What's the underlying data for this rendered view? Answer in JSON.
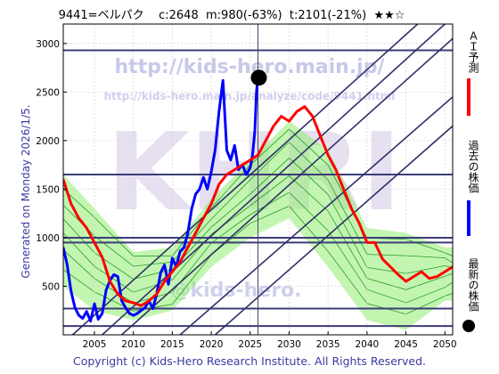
{
  "header": {
    "ticker": "9441=ベルパク",
    "current": "c:2648",
    "min": "m:980(-63%)",
    "target": "t:2101(-21%)",
    "stars": "★★☆"
  },
  "side_label": "Generated on Monday 2026/1/5.",
  "copyright": "Copyright (c) Kids-Hero Research Institute. All Rights Reserved.",
  "watermark": {
    "url1": "http://kids-hero.main.jp/",
    "url2": "http://kids-hero.main.jp/analyze/code/9441.html",
    "big": "KHRI",
    "email": "@kids-hero."
  },
  "legend": {
    "ai_label": "ＡＩ予測",
    "past_label": "過去の株価",
    "latest_label": "最新の株価"
  },
  "colors": {
    "ai": "#ff0000",
    "past": "#0000ff",
    "latest": "#000000",
    "band_fill": "#90ee70",
    "band_line": "#2a9a2a",
    "hline": "#3c3c78",
    "diag": "#30306a"
  },
  "chart_data": {
    "type": "line",
    "xlim": [
      2001,
      2051
    ],
    "ylim": [
      0,
      3200
    ],
    "x_ticks": [
      2005,
      2010,
      2015,
      2020,
      2025,
      2030,
      2035,
      2040,
      2045,
      2050
    ],
    "y_ticks": [
      500,
      1000,
      1500,
      2000,
      2500,
      3000
    ],
    "horizontal_levels": [
      2930,
      1650,
      1000,
      950,
      270,
      90
    ],
    "vertical_marker_x": 2026,
    "latest_point": {
      "x": 2026.0,
      "y": 2648
    },
    "series": [
      {
        "key": "past",
        "x": [
          2001.0,
          2001.5,
          2002.0,
          2002.5,
          2003.0,
          2003.5,
          2004.0,
          2004.5,
          2005.0,
          2005.5,
          2006.0,
          2006.5,
          2007.0,
          2007.5,
          2008.0,
          2008.5,
          2009.0,
          2009.5,
          2010.0,
          2010.5,
          2011.0,
          2011.5,
          2012.0,
          2012.5,
          2013.0,
          2013.5,
          2014.0,
          2014.5,
          2015.0,
          2015.5,
          2016.0,
          2016.5,
          2017.0,
          2017.5,
          2018.0,
          2018.5,
          2019.0,
          2019.5,
          2020.0,
          2020.5,
          2021.0,
          2021.5,
          2022.0,
          2022.5,
          2023.0,
          2023.5,
          2024.0,
          2024.5,
          2025.0,
          2025.3,
          2025.6,
          2025.8,
          2026.0
        ],
        "y": [
          900,
          720,
          450,
          280,
          200,
          170,
          240,
          140,
          320,
          160,
          220,
          460,
          560,
          620,
          600,
          350,
          280,
          220,
          200,
          220,
          250,
          280,
          350,
          270,
          420,
          640,
          720,
          520,
          790,
          700,
          860,
          900,
          1050,
          1300,
          1450,
          1500,
          1620,
          1500,
          1680,
          1900,
          2300,
          2620,
          1900,
          1800,
          1950,
          1700,
          1750,
          1650,
          1720,
          1850,
          2100,
          2500,
          2648
        ]
      },
      {
        "key": "ai",
        "x": [
          2001.0,
          2002.0,
          2003.0,
          2004.0,
          2005.0,
          2006.0,
          2007.0,
          2008.0,
          2009.0,
          2010.0,
          2011.0,
          2012.0,
          2013.0,
          2014.0,
          2015.0,
          2016.0,
          2017.0,
          2018.0,
          2019.0,
          2020.0,
          2021.0,
          2022.0,
          2023.0,
          2024.0,
          2025.0,
          2026.0,
          2027.0,
          2028.0,
          2029.0,
          2030.0,
          2031.0,
          2032.0,
          2033.0,
          2034.0,
          2035.0,
          2036.0,
          2037.0,
          2038.0,
          2039.0,
          2040.0,
          2041.0,
          2042.0,
          2043.0,
          2044.0,
          2045.0,
          2046.0,
          2047.0,
          2048.0,
          2049.0,
          2050.0,
          2051.0
        ],
        "y": [
          1600,
          1350,
          1200,
          1100,
          950,
          800,
          550,
          420,
          350,
          330,
          300,
          350,
          420,
          550,
          650,
          750,
          900,
          1050,
          1200,
          1350,
          1550,
          1650,
          1700,
          1750,
          1800,
          1850,
          2000,
          2150,
          2250,
          2200,
          2300,
          2350,
          2250,
          2050,
          1850,
          1700,
          1500,
          1300,
          1150,
          950,
          950,
          780,
          700,
          620,
          550,
          600,
          650,
          580,
          600,
          650,
          700
        ]
      }
    ],
    "band": {
      "x": [
        2001,
        2005,
        2010,
        2015,
        2020,
        2025,
        2030,
        2035,
        2040,
        2045,
        2050,
        2051
      ],
      "lower": [
        500,
        250,
        150,
        250,
        700,
        1000,
        1200,
        700,
        150,
        50,
        350,
        350
      ],
      "upper": [
        1650,
        1300,
        850,
        900,
        1400,
        1800,
        2200,
        1900,
        1100,
        1050,
        900,
        900
      ]
    },
    "diagonal_lines": [
      [
        [
          2002.2,
          0
        ],
        [
          2046.5,
          3200
        ]
      ],
      [
        [
          2006.0,
          0
        ],
        [
          2050.0,
          3200
        ]
      ],
      [
        [
          2008.5,
          0
        ],
        [
          2051.0,
          3050
        ]
      ],
      [
        [
          2016.0,
          0
        ],
        [
          2051.0,
          2450
        ]
      ],
      [
        [
          2020.5,
          0
        ],
        [
          2051.0,
          2150
        ]
      ]
    ]
  }
}
